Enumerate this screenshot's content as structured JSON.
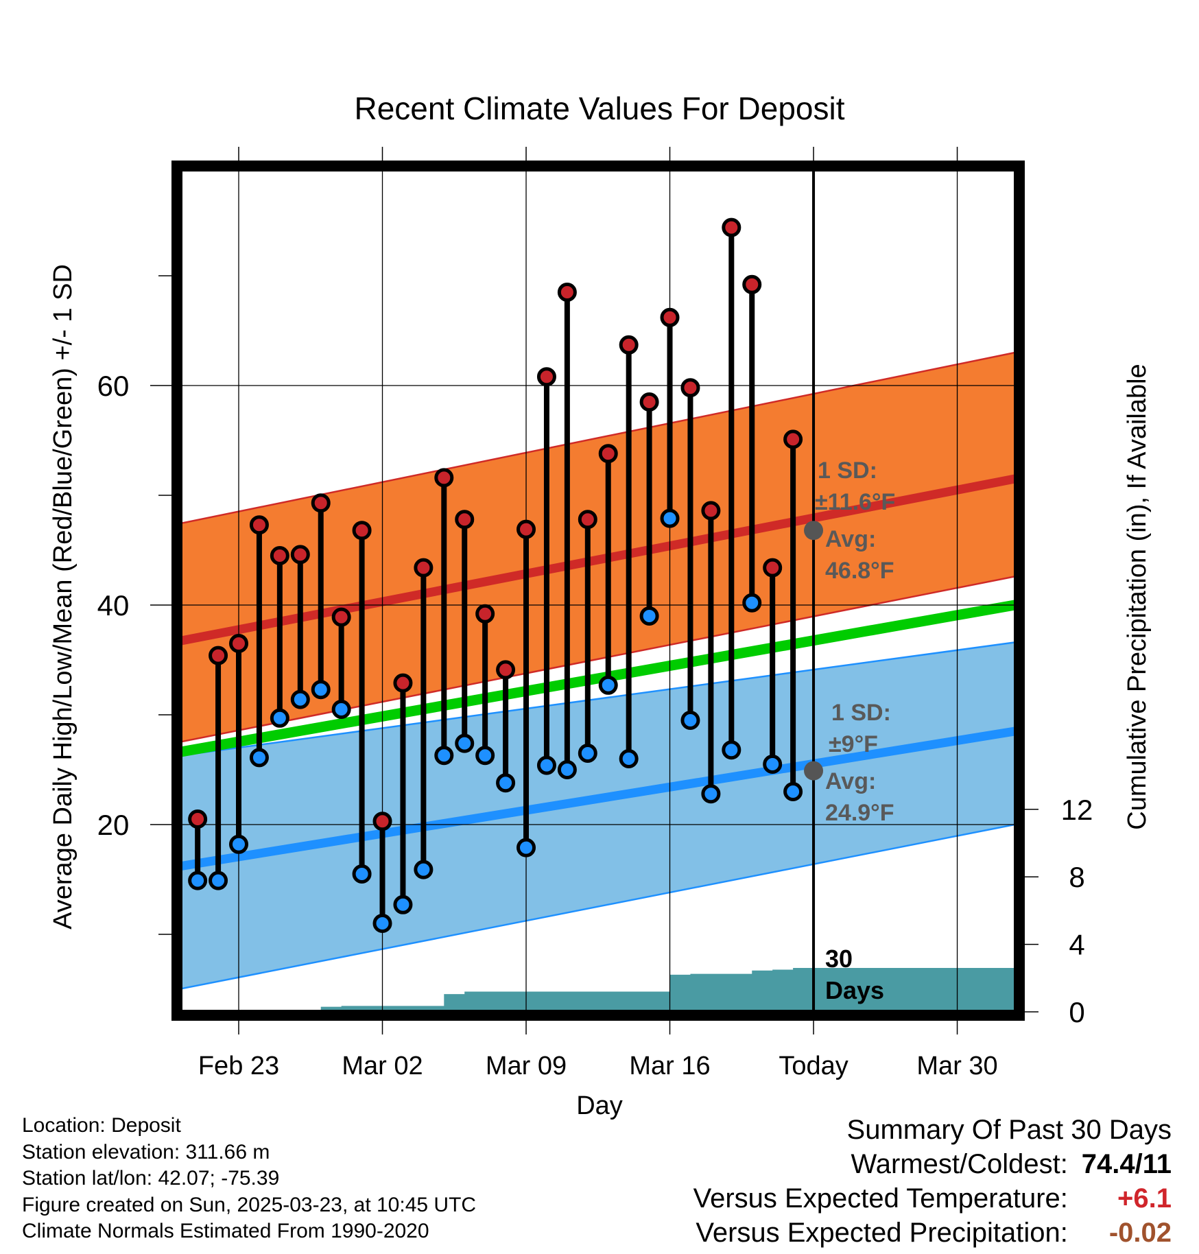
{
  "chart_data": {
    "type": "line",
    "title": "Recent Climate Values For Deposit",
    "xlabel": "Day",
    "ylabel": "Average Daily High/Low/Mean (Red/Blue/Green) +/- 1 SD",
    "y2label": "Cumulative Precipitation (in), If Available",
    "x_tick_labels": [
      "Feb 23",
      "Mar 02",
      "Mar 09",
      "Mar 16",
      "Today",
      "Mar 30"
    ],
    "x_tick_days": [
      0,
      7,
      14,
      21,
      28,
      35
    ],
    "xlim_days": [
      -3.2,
      37.8
    ],
    "ylim": [
      2,
      79
    ],
    "y_ticks": [
      20,
      40,
      60
    ],
    "y2lim": [
      0,
      24.5
    ],
    "y2_ticks": [
      0,
      4,
      8,
      12
    ],
    "today_day": 28,
    "grid": true,
    "normals": {
      "days": [
        -3.2,
        37.8
      ],
      "high_mean": [
        36.6,
        51.5
      ],
      "high_upper": [
        47.3,
        63
      ],
      "high_lower": [
        27.4,
        42.6
      ],
      "low_mean": [
        16.1,
        28.5
      ],
      "low_upper": [
        26.2,
        36.6
      ],
      "low_lower": [
        4.9,
        20
      ],
      "mean": [
        26.5,
        40
      ]
    },
    "series": [
      {
        "name": "High",
        "color": "#c8242b",
        "days": [
          -2,
          -1,
          0,
          1,
          2,
          3,
          4,
          5,
          6,
          7,
          8,
          9,
          10,
          11,
          12,
          13,
          14,
          15,
          16,
          17,
          18,
          19,
          20,
          21,
          22,
          23,
          24,
          25,
          26,
          27
        ],
        "values": [
          20.5,
          35.4,
          36.5,
          47.3,
          44.5,
          44.6,
          49.3,
          38.9,
          46.8,
          20.3,
          32.9,
          43.4,
          51.6,
          47.8,
          39.2,
          34.1,
          46.9,
          60.8,
          68.5,
          47.8,
          53.8,
          63.7,
          58.5,
          66.2,
          59.8,
          48.6,
          74.4,
          69.2,
          43.4,
          55.1
        ]
      },
      {
        "name": "Low",
        "color": "#1e90ff",
        "days": [
          -2,
          -1,
          0,
          1,
          2,
          3,
          4,
          5,
          6,
          7,
          8,
          9,
          10,
          11,
          12,
          13,
          14,
          15,
          16,
          17,
          18,
          19,
          20,
          21,
          22,
          23,
          24,
          25,
          26,
          27
        ],
        "values": [
          14.9,
          14.9,
          18.2,
          26.1,
          29.7,
          31.4,
          32.3,
          30.5,
          15.5,
          11.0,
          12.7,
          15.9,
          26.3,
          27.4,
          26.3,
          23.8,
          17.9,
          25.4,
          25.0,
          26.5,
          32.7,
          26.0,
          39.0,
          47.9,
          29.5,
          22.8,
          26.8,
          40.2,
          25.5,
          23.0
        ]
      },
      {
        "name": "Precipitation",
        "color": "#4a9ba3",
        "days": [
          -2,
          -1,
          0,
          1,
          2,
          3,
          4,
          5,
          6,
          7,
          8,
          9,
          10,
          11,
          12,
          13,
          14,
          15,
          16,
          17,
          18,
          19,
          20,
          21,
          22,
          23,
          24,
          25,
          26,
          27,
          37.8
        ],
        "values": [
          0,
          0,
          0,
          0,
          0,
          0,
          0.3,
          0.35,
          0.35,
          0.35,
          0.35,
          0.35,
          1.05,
          1.2,
          1.2,
          1.2,
          1.2,
          1.2,
          1.2,
          1.2,
          1.2,
          1.2,
          1.2,
          2.2,
          2.25,
          2.25,
          2.25,
          2.45,
          2.5,
          2.6,
          2.6
        ]
      }
    ],
    "annotations": {
      "high_sd_label": "1 SD:",
      "high_sd_value": "±11.6°F",
      "high_avg_label": "Avg:",
      "high_avg_value": "46.8°F",
      "low_sd_label": "1 SD:",
      "low_sd_value": "±9°F",
      "low_avg_label": "Avg:",
      "low_avg_value": "24.9°F",
      "days_number": "30",
      "days_word": "Days",
      "high_avg": 46.8,
      "low_avg": 24.9
    }
  },
  "info": {
    "location": "Location: Deposit",
    "elevation": "Station elevation: 311.66 m",
    "latlon": "Station lat/lon: 42.07; -75.39",
    "created": "Figure created on Sun, 2025-03-23, at 10:45 UTC",
    "normals": "Climate Normals Estimated From 1990-2020"
  },
  "summary": {
    "title": "Summary Of Past 30 Days",
    "warm_cold_label": "Warmest/Coldest:",
    "warm_cold_value": "74.4/11",
    "temp_label": "Versus Expected Temperature:",
    "temp_value": "+6.1",
    "temp_color": "#d0252b",
    "precip_label": "Versus Expected Precipitation:",
    "precip_value": "-0.02",
    "precip_color": "#a0522d"
  },
  "colors": {
    "high_band": "#f47c30",
    "high_line": "#cf2a27",
    "low_band": "#82c0e7",
    "low_line": "#1e90ff",
    "mean_line": "#00cc00",
    "precip_fill": "#4a9ba3",
    "today_marker": "#555555",
    "annotation_text": "#595959"
  }
}
